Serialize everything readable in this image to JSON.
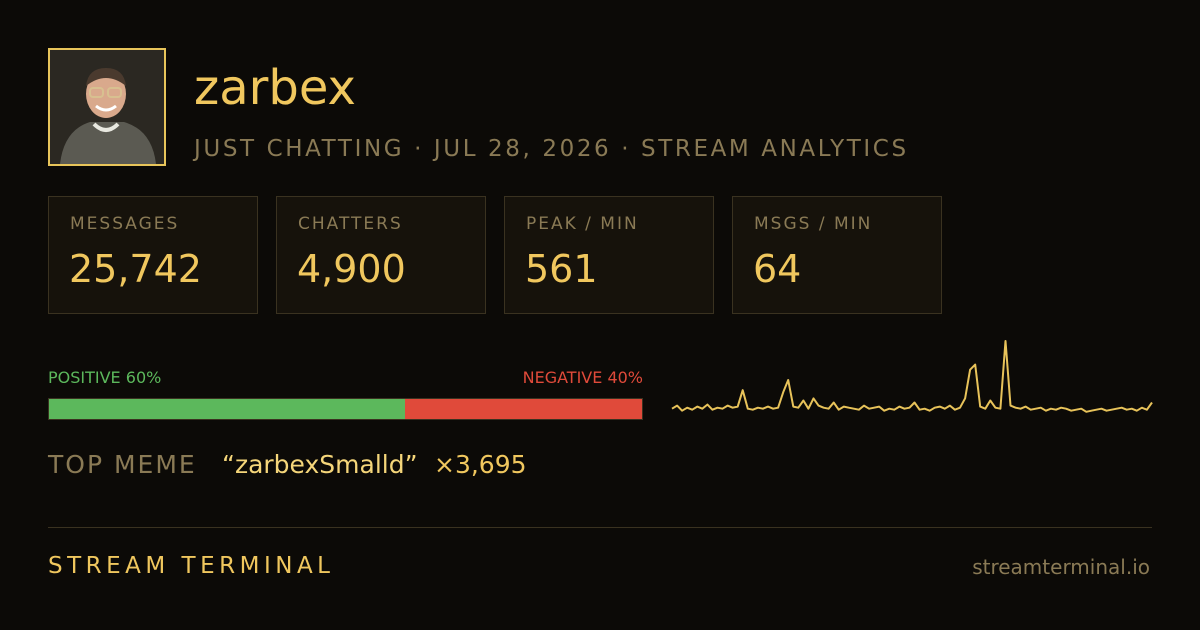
{
  "header": {
    "username": "zarbex",
    "subtitle": "JUST CHATTING · JUL 28, 2026 · STREAM ANALYTICS"
  },
  "stats": [
    {
      "label": "MESSAGES",
      "value": "25,742"
    },
    {
      "label": "CHATTERS",
      "value": "4,900"
    },
    {
      "label": "PEAK / MIN",
      "value": "561"
    },
    {
      "label": "MSGS / MIN",
      "value": "64"
    }
  ],
  "sentiment": {
    "positive": {
      "name": "POSITIVE",
      "value": 60,
      "value_label": "60%",
      "color": "#5cb85c"
    },
    "negative": {
      "name": "NEGATIVE",
      "value": 40,
      "value_label": "40%",
      "color": "#e04a3a"
    }
  },
  "sparkline": {
    "color": "#e8c35a",
    "values": [
      12,
      15,
      10,
      13,
      11,
      14,
      12,
      16,
      11,
      13,
      12,
      15,
      13,
      14,
      30,
      12,
      11,
      13,
      12,
      14,
      12,
      13,
      28,
      40,
      14,
      13,
      20,
      12,
      22,
      15,
      13,
      12,
      18,
      11,
      14,
      13,
      12,
      11,
      15,
      12,
      13,
      14,
      10,
      12,
      11,
      14,
      12,
      13,
      18,
      11,
      12,
      10,
      13,
      14,
      12,
      15,
      11,
      13,
      22,
      50,
      55,
      14,
      12,
      20,
      13,
      12,
      78,
      15,
      13,
      12,
      14,
      11,
      12,
      13,
      10,
      12,
      11,
      13,
      12,
      10,
      11,
      12,
      9,
      10,
      11,
      12,
      10,
      11,
      12,
      13,
      11,
      12,
      10,
      13,
      11,
      18
    ]
  },
  "top_meme": {
    "label": "TOP MEME",
    "meme": "“zarbexSmalld”",
    "count": "×3,695"
  },
  "footer": {
    "brand": "STREAM TERMINAL",
    "url": "streamterminal.io"
  }
}
